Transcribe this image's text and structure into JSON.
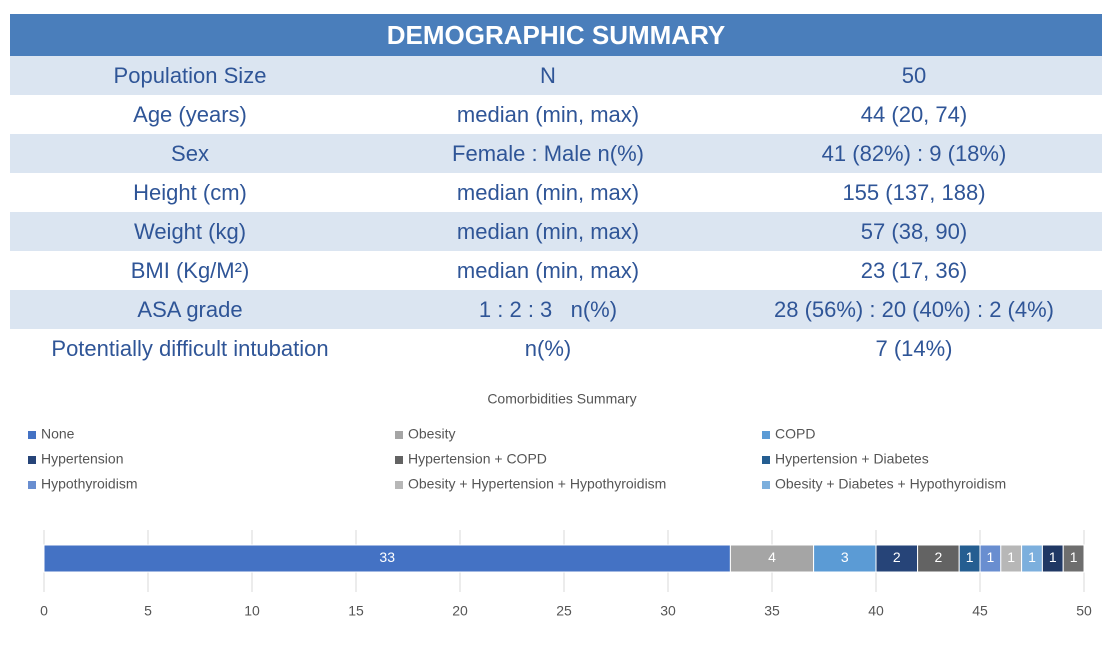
{
  "table": {
    "title": "DEMOGRAPHIC SUMMARY",
    "rows": [
      [
        "Population Size",
        "N",
        "50"
      ],
      [
        "Age (years)",
        "median (min, max)",
        "44 (20, 74)"
      ],
      [
        "Sex",
        "Female : Male n(%)",
        "41 (82%) : 9 (18%)"
      ],
      [
        "Height (cm)",
        "median (min, max)",
        "155 (137, 188)"
      ],
      [
        "Weight (kg)",
        "median (min, max)",
        "57 (38, 90)"
      ],
      [
        "BMI (Kg/M²)",
        "median (min, max)",
        "23 (17, 36)"
      ],
      [
        "ASA grade",
        "1 : 2 : 3   n(%)",
        "28 (56%) : 20 (40%) : 2 (4%)"
      ],
      [
        "Potentially difficult intubation",
        "n(%)",
        "7 (14%)"
      ]
    ]
  },
  "chart_data": {
    "type": "stacked-bar",
    "orientation": "horizontal",
    "title": "Comorbidities Summary",
    "xlim": [
      0,
      50
    ],
    "xticks": [
      0,
      5,
      10,
      15,
      20,
      25,
      30,
      35,
      40,
      45,
      50
    ],
    "grid": true,
    "legend": "top",
    "series": [
      {
        "name": "None",
        "color": "#4472c4",
        "values": [
          33
        ]
      },
      {
        "name": "Obesity",
        "color": "#a5a5a5",
        "values": [
          4
        ]
      },
      {
        "name": "COPD",
        "color": "#5b9bd5",
        "values": [
          3
        ]
      },
      {
        "name": "Hypertension",
        "color": "#264478",
        "values": [
          2
        ]
      },
      {
        "name": "Hypertension + COPD",
        "color": "#636363",
        "values": [
          2
        ]
      },
      {
        "name": "Hypertension + Diabetes",
        "color": "#255e91",
        "values": [
          1
        ]
      },
      {
        "name": "Hypothyroidism",
        "color": "#698ed0",
        "values": [
          1
        ]
      },
      {
        "name": "Obesity + Hypertension + Hypothyroidism",
        "color": "#b7b7b7",
        "values": [
          1
        ]
      },
      {
        "name": "Obesity + Diabetes + Hypothyroidism",
        "color": "#7cafdd",
        "values": [
          1
        ]
      },
      {
        "color": "#203864",
        "values": [
          1
        ]
      },
      {
        "color": "#6e6e6e",
        "values": [
          1
        ]
      }
    ]
  }
}
